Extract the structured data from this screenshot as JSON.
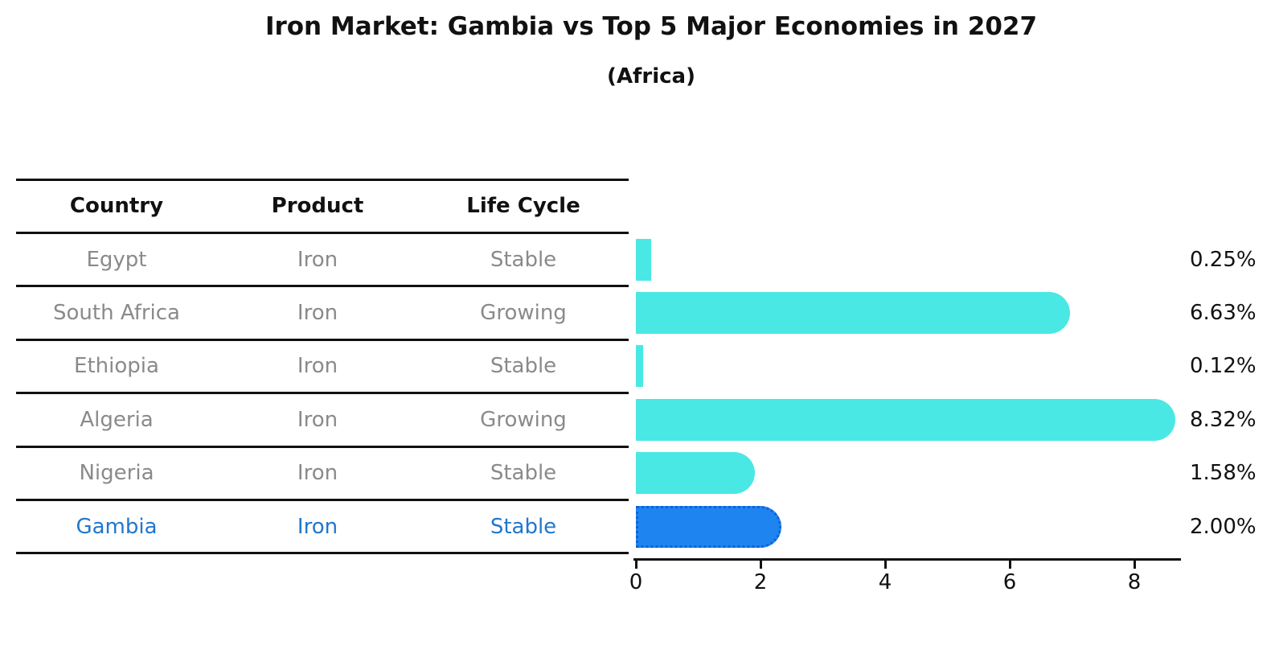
{
  "title": "Iron Market: Gambia vs Top 5 Major Economies in 2027",
  "subtitle": "(Africa)",
  "table": {
    "headers": [
      "Country",
      "Product",
      "Life Cycle"
    ],
    "rows": [
      {
        "country": "Egypt",
        "product": "Iron",
        "life_cycle": "Stable",
        "highlight": false
      },
      {
        "country": "South Africa",
        "product": "Iron",
        "life_cycle": "Growing",
        "highlight": false
      },
      {
        "country": "Ethiopia",
        "product": "Iron",
        "life_cycle": "Stable",
        "highlight": false
      },
      {
        "country": "Algeria",
        "product": "Iron",
        "life_cycle": "Growing",
        "highlight": false
      },
      {
        "country": "Nigeria",
        "product": "Iron",
        "life_cycle": "Stable",
        "highlight": false
      },
      {
        "country": "Gambia",
        "product": "Iron",
        "life_cycle": "Stable",
        "highlight": true
      }
    ]
  },
  "chart_data": {
    "type": "bar",
    "orientation": "horizontal",
    "title": "Iron Market: Gambia vs Top 5 Major Economies in 2027",
    "subtitle": "(Africa)",
    "categories": [
      "Egypt",
      "South Africa",
      "Ethiopia",
      "Algeria",
      "Nigeria",
      "Gambia"
    ],
    "values": [
      0.25,
      6.63,
      0.12,
      8.32,
      1.58,
      2.0
    ],
    "value_labels": [
      "0.25%",
      "6.63%",
      "0.12%",
      "8.32%",
      "1.58%",
      "2.00%"
    ],
    "highlight_index": 5,
    "x_ticks": [
      0,
      2,
      4,
      6,
      8
    ],
    "x_tick_labels": [
      "0",
      "2",
      "4",
      "6",
      "8"
    ],
    "xlim": [
      0,
      8.75
    ],
    "grid": false,
    "legend": false,
    "colors": {
      "bar": "#4AE8E4",
      "highlight_bar": "#1E84F0",
      "highlight_border": "#0E62D8",
      "row_text": "#8A8A8A",
      "highlight_text": "#2277CC",
      "header_text": "#111111",
      "axis": "#111111"
    }
  }
}
